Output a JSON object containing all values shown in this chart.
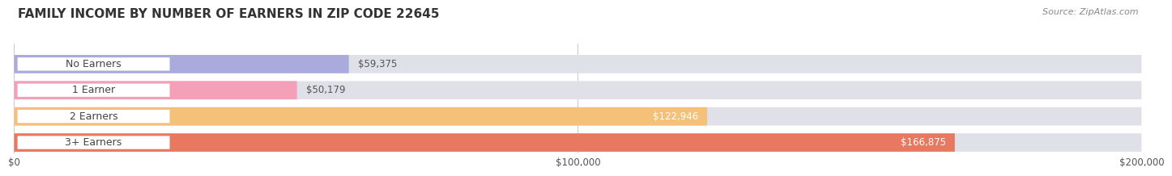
{
  "title": "FAMILY INCOME BY NUMBER OF EARNERS IN ZIP CODE 22645",
  "source": "Source: ZipAtlas.com",
  "categories": [
    "No Earners",
    "1 Earner",
    "2 Earners",
    "3+ Earners"
  ],
  "values": [
    59375,
    50179,
    122946,
    166875
  ],
  "labels": [
    "$59,375",
    "$50,179",
    "$122,946",
    "$166,875"
  ],
  "bar_colors": [
    "#aaaadc",
    "#f4a0b8",
    "#f5c078",
    "#e87860"
  ],
  "bar_bg_color": "#e0e0e8",
  "label_dark": "#555555",
  "label_light": "#ffffff",
  "label_threshold": 0.45,
  "xlim": [
    0,
    200000
  ],
  "xticklabels": [
    "$0",
    "$100,000",
    "$200,000"
  ],
  "fig_width": 14.06,
  "fig_height": 2.34,
  "title_fontsize": 11,
  "bar_label_fontsize": 8.5,
  "category_fontsize": 9,
  "source_fontsize": 8,
  "background_color": "#ffffff",
  "bar_height": 0.7,
  "bar_gap": 0.3
}
